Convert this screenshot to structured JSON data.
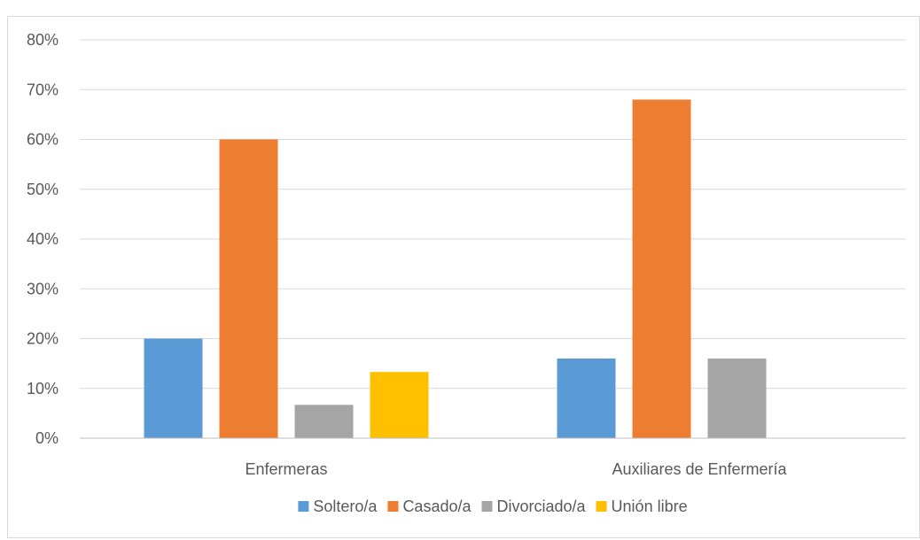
{
  "chart_data": {
    "type": "bar",
    "categories": [
      "Enfermeras",
      "Auxiliares de Enfermería"
    ],
    "series": [
      {
        "name": "Soltero/a",
        "color": "#5B9BD5",
        "values": [
          0.2,
          0.16
        ]
      },
      {
        "name": "Casado/a",
        "color": "#ED7D31",
        "values": [
          0.6,
          0.68
        ]
      },
      {
        "name": "Divorciado/a",
        "color": "#A5A5A5",
        "values": [
          0.067,
          0.16
        ]
      },
      {
        "name": "Unión libre",
        "color": "#FFC000",
        "values": [
          0.133,
          0
        ]
      }
    ],
    "ylim": [
      0,
      0.8
    ],
    "yticks": [
      "0%",
      "10%",
      "20%",
      "30%",
      "40%",
      "50%",
      "60%",
      "70%",
      "80%"
    ],
    "grid": true,
    "legend_position": "bottom",
    "gridline_color": "#d9d9d9",
    "axis_color": "#bfbfbf"
  }
}
